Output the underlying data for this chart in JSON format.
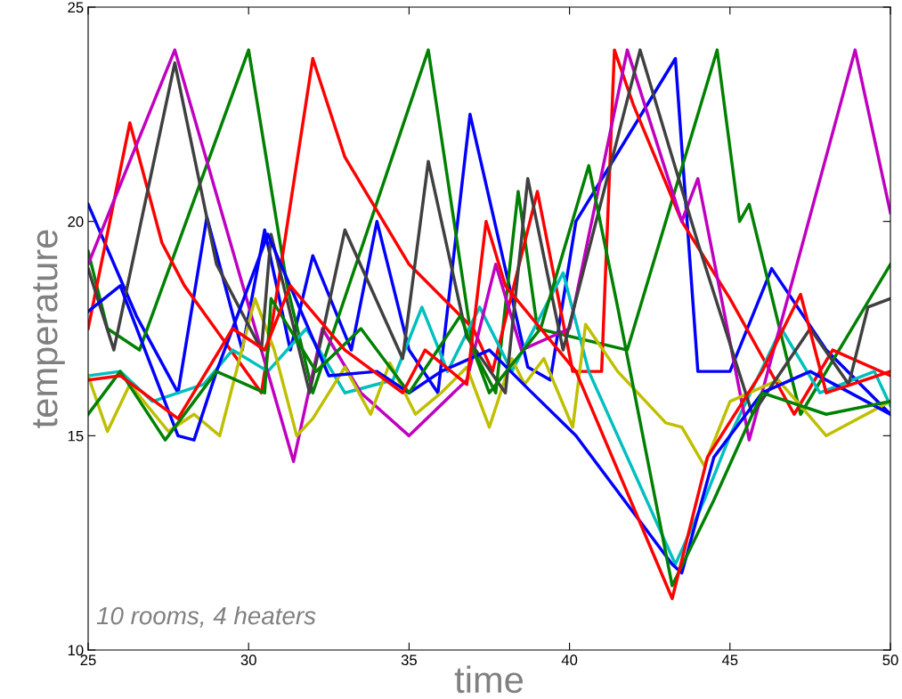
{
  "chart_data": {
    "type": "line",
    "xlabel": "time",
    "ylabel": "temperature",
    "annotations": [
      "10 rooms, 4 heaters"
    ],
    "xlim": [
      25,
      50
    ],
    "ylim": [
      10,
      25
    ],
    "xticks": [
      25,
      30,
      35,
      40,
      45,
      50
    ],
    "yticks": [
      10,
      15,
      20,
      25
    ],
    "grid": false,
    "legend": false,
    "line_style": "solid",
    "marker": "none",
    "series": [
      {
        "color": "#0000ff",
        "x": [
          25,
          26.5,
          27.8,
          28.7,
          29.8,
          30.5,
          31.3,
          32,
          33.2,
          34,
          35,
          35.9,
          36.9,
          38.7,
          39.4,
          40.2,
          43.3,
          44,
          45,
          46.3,
          48,
          50
        ],
        "values": [
          20.4,
          17.8,
          16,
          20.1,
          17,
          19.8,
          17,
          19.2,
          17,
          20,
          17,
          16,
          22.5,
          16.6,
          16.3,
          20,
          23.8,
          16.5,
          16.5,
          18.9,
          17,
          15.5
        ]
      },
      {
        "color": "#008000",
        "x": [
          25,
          25.6,
          26.6,
          30,
          31.2,
          32,
          35.6,
          37,
          37.7,
          38.4,
          39,
          41.8,
          44.6,
          45.3,
          45.6,
          47.2,
          48,
          50
        ],
        "values": [
          19.3,
          17.5,
          17,
          24,
          18.5,
          16,
          24,
          17,
          16,
          20.7,
          17.5,
          17,
          24,
          20,
          20.4,
          15.5,
          16.5,
          19
        ]
      },
      {
        "color": "#ff0000",
        "x": [
          25,
          26.3,
          27.3,
          28,
          30.4,
          32,
          33,
          35,
          37,
          37.6,
          39,
          40.1,
          41,
          41.4,
          42,
          43.5,
          45,
          47,
          48.2,
          50
        ],
        "values": [
          17.5,
          22.3,
          19.5,
          18.5,
          16,
          23.8,
          21.5,
          19,
          17.5,
          16.5,
          20.7,
          16.5,
          16.5,
          24,
          22.7,
          20,
          18.2,
          15.5,
          17,
          16.4
        ]
      },
      {
        "color": "#00bfbf",
        "x": [
          25,
          26,
          27,
          28.6,
          29.5,
          30.6,
          31.8,
          33,
          34.5,
          35.4,
          36.2,
          37.2,
          38.2,
          39.8,
          40.6,
          43.3,
          44.2,
          45,
          46.6,
          47.8,
          49.5,
          50
        ],
        "values": [
          16.4,
          16.5,
          15.8,
          16.2,
          17,
          16.5,
          17.5,
          16,
          16.3,
          18,
          16.5,
          18,
          16.5,
          18.8,
          16.5,
          12,
          13.5,
          15,
          17.5,
          16,
          16.5,
          15.7
        ]
      },
      {
        "color": "#bf00bf",
        "x": [
          25,
          27.7,
          31.4,
          32.3,
          33.5,
          35,
          36.8,
          37.7,
          38.5,
          40,
          41.8,
          43.5,
          44,
          45.6,
          48.9,
          50
        ],
        "values": [
          19,
          24,
          14.4,
          17.5,
          16,
          15,
          16.3,
          19,
          17,
          17.5,
          24,
          20,
          21,
          14.9,
          24,
          20.2
        ]
      },
      {
        "color": "#bfbf00",
        "x": [
          25,
          25.6,
          26.3,
          27.5,
          28.3,
          29.1,
          30.2,
          30.8,
          31.5,
          32,
          33,
          33.8,
          34.4,
          35.2,
          36,
          36.8,
          37.5,
          38.2,
          38.6,
          39.2,
          40.1,
          40.5,
          41.5,
          43,
          43.5,
          44.2,
          45,
          46.5,
          47.2,
          48,
          50
        ],
        "values": [
          16.4,
          15.1,
          16.2,
          15.1,
          15.5,
          15,
          18.2,
          17,
          15,
          15.4,
          16.6,
          15.5,
          16.7,
          15.5,
          16,
          16.6,
          15.2,
          16.8,
          16.2,
          16.8,
          15.2,
          17.6,
          16.5,
          15.3,
          15.2,
          14.3,
          15.8,
          16.3,
          15.7,
          15,
          15.8
        ]
      },
      {
        "color": "#404040",
        "x": [
          25,
          25.8,
          27.7,
          29,
          30.4,
          30.7,
          31.9,
          33,
          34.8,
          35.6,
          36.8,
          38,
          38.7,
          39.8,
          42.2,
          44,
          45.7,
          47.5,
          48.7,
          49.3,
          50
        ],
        "values": [
          18.9,
          17,
          23.7,
          19,
          17,
          19.7,
          16,
          19.8,
          16.8,
          21.4,
          17.3,
          16,
          21,
          17,
          24,
          19.5,
          15.5,
          17.5,
          16.2,
          18,
          18.2
        ]
      },
      {
        "color": "#0000ff",
        "x": [
          25,
          26,
          27.8,
          28.3,
          29,
          30.6,
          32.5,
          34,
          35,
          36,
          37.5,
          38.7,
          40.2,
          43.2,
          43.5,
          44.5,
          46,
          47.5,
          50
        ],
        "values": [
          17.9,
          18.5,
          15,
          14.9,
          16.5,
          19.7,
          16.4,
          16.5,
          16,
          16.5,
          17,
          16.1,
          15,
          12,
          11.8,
          14.5,
          16,
          16.5,
          15.5
        ]
      },
      {
        "color": "#008000",
        "x": [
          25,
          26,
          27.4,
          29,
          30.5,
          30.7,
          32.1,
          33.5,
          35,
          36.6,
          37.5,
          39.1,
          40.6,
          41.5,
          43.2,
          44.5,
          46,
          48,
          50
        ],
        "values": [
          15.5,
          16.5,
          14.9,
          16.5,
          16,
          18.2,
          16.5,
          17.5,
          16,
          17.8,
          16,
          17.5,
          21.3,
          18,
          11.5,
          13.5,
          16,
          15.5,
          15.8
        ]
      },
      {
        "color": "#ff0000",
        "x": [
          25,
          26,
          27.8,
          29.5,
          30.5,
          31.3,
          33,
          34.8,
          35.5,
          36.8,
          37.4,
          38,
          40.2,
          43.2,
          44.3,
          46,
          47.2,
          48,
          50
        ],
        "values": [
          16.3,
          16.4,
          15.4,
          17.5,
          17,
          18.5,
          17,
          16,
          17,
          16.2,
          20,
          18.5,
          16.5,
          11.2,
          14.5,
          16.5,
          18.3,
          16,
          16.5
        ]
      }
    ]
  }
}
